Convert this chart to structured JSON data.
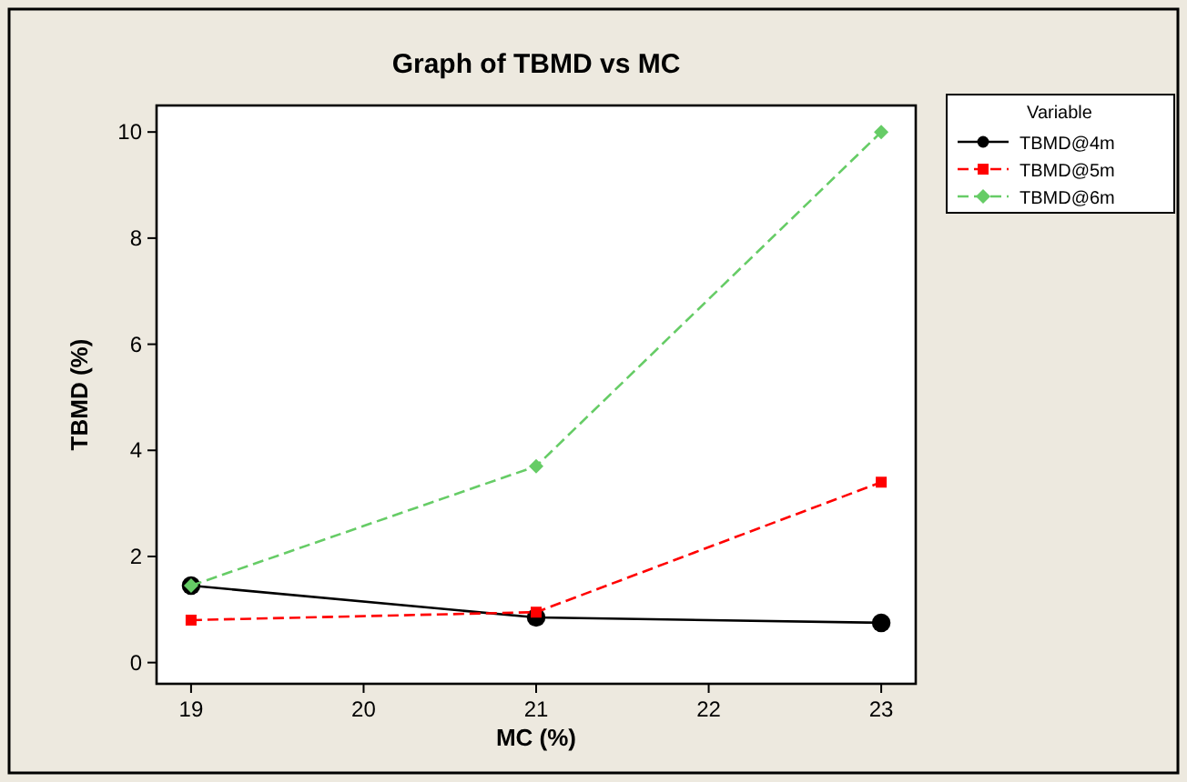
{
  "chart_data": {
    "type": "line",
    "title": "Graph of TBMD vs MC",
    "xlabel": "MC (%)",
    "ylabel": "TBMD (%)",
    "legend_title": "Variable",
    "legend": "right",
    "grid": false,
    "x": [
      19,
      21,
      23
    ],
    "xlim": [
      18.8,
      23.2
    ],
    "xticks": [
      19,
      20,
      21,
      22,
      23
    ],
    "ylim": [
      -0.4,
      10.5
    ],
    "yticks": [
      0,
      2,
      4,
      6,
      8,
      10
    ],
    "series": [
      {
        "name": "TBMD@4m",
        "color": "#000000",
        "marker": "circle",
        "line_style": "solid",
        "values": [
          1.45,
          0.85,
          0.75
        ]
      },
      {
        "name": "TBMD@5m",
        "color": "#ff0000",
        "marker": "square",
        "line_style": "dashed",
        "values": [
          0.8,
          0.95,
          3.4
        ]
      },
      {
        "name": "TBMD@6m",
        "color": "#66cc66",
        "marker": "diamond",
        "line_style": "dashed",
        "values": [
          1.45,
          3.7,
          10.0
        ]
      }
    ]
  }
}
